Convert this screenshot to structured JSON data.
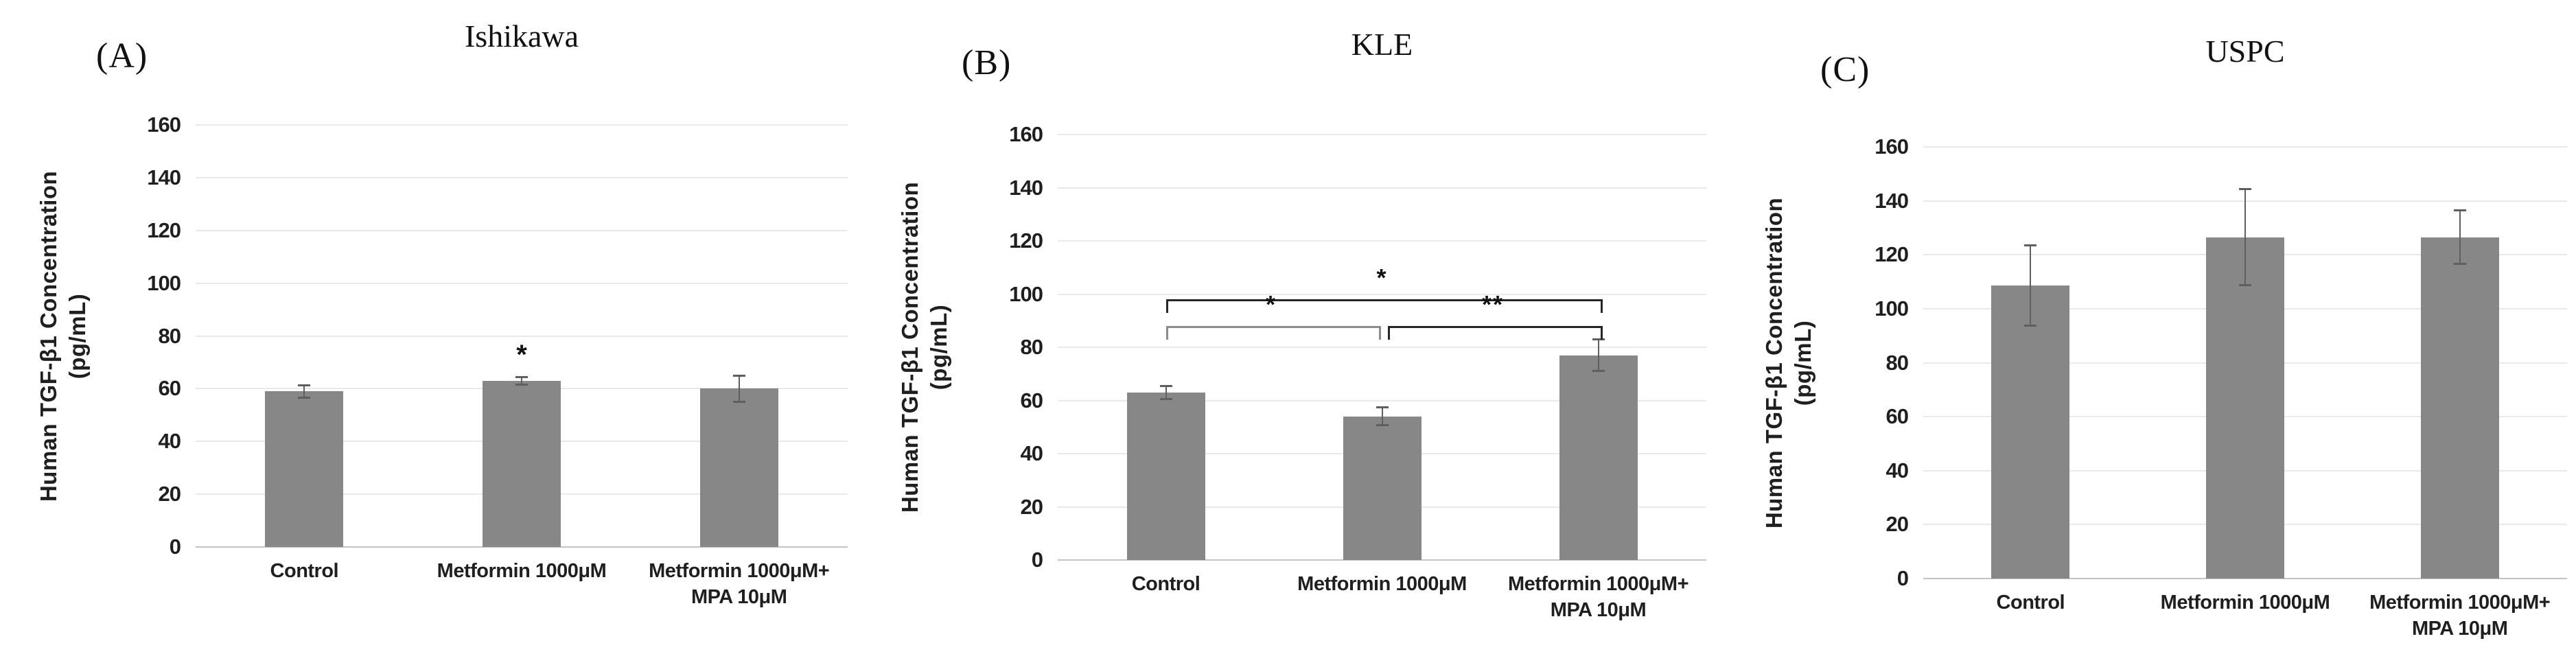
{
  "figure": {
    "kind": "three-panel bar figure",
    "background": "#ffffff",
    "y_axis_title_line1": "Human TGF-β1 Concentration",
    "y_axis_title_line2": "(pg/mL)"
  },
  "colors": {
    "bar": "#878787",
    "gridline": "#e9e9e9",
    "axis_line": "#c3c3c3",
    "error_bar": "#5f5f5f",
    "bracket_dark": "#262626",
    "bracket_gray": "#8c8c8c",
    "text": "#1f1f1f"
  },
  "chart_data": [
    {
      "type": "bar",
      "panel_label": "(A)",
      "title": "Ishikawa",
      "ylabel_line1": "Human TGF-β1 Concentration",
      "ylabel_line2": "(pg/mL)",
      "ylim": [
        0,
        160
      ],
      "ytick_step": 20,
      "y_ticks": [
        "160",
        "140",
        "120",
        "100",
        "80",
        "60",
        "40",
        "20",
        "0"
      ],
      "categories": [
        "Control",
        "Metformin 1000μM",
        "Metformin 1000μM+ MPA 10μM"
      ],
      "categories_lines": [
        [
          "Control"
        ],
        [
          "Metformin 1000μM"
        ],
        [
          "Metformin 1000μM+",
          "MPA 10μM"
        ]
      ],
      "values": [
        59,
        63,
        60
      ],
      "errors": [
        2.5,
        1.5,
        5
      ],
      "grid": true,
      "legend": null,
      "star_annotations": [
        {
          "bar_index": 1,
          "y": 74,
          "text": "*"
        }
      ],
      "sig_brackets": []
    },
    {
      "type": "bar",
      "panel_label": "(B)",
      "title": "KLE",
      "ylabel_line1": "Human TGF-β1 Concentration",
      "ylabel_line2": "(pg/mL)",
      "ylim": [
        0,
        160
      ],
      "ytick_step": 20,
      "y_ticks": [
        "160",
        "140",
        "120",
        "100",
        "80",
        "60",
        "40",
        "20",
        "0"
      ],
      "categories": [
        "Control",
        "Metformin 1000μM",
        "Metformin 1000μM+ MPA 10μM"
      ],
      "categories_lines": [
        [
          "Control"
        ],
        [
          "Metformin 1000μM"
        ],
        [
          "Metformin 1000μM+",
          "MPA 10μM"
        ]
      ],
      "values": [
        63,
        54,
        77
      ],
      "errors": [
        2.5,
        3.5,
        6
      ],
      "grid": true,
      "legend": null,
      "star_annotations": [],
      "sig_brackets": [
        {
          "from": 0,
          "to": 2,
          "y": 98,
          "label": "*",
          "style": "dark"
        },
        {
          "from": 0,
          "to": 1,
          "y": 88,
          "label": "*",
          "style": "gray"
        },
        {
          "from": 1,
          "to": 2,
          "y": 88,
          "label": "**",
          "style": "dark"
        }
      ]
    },
    {
      "type": "bar",
      "panel_label": "(C)",
      "title": "USPC",
      "ylabel_line1": "Human TGF-β1 Concentration",
      "ylabel_line2": "(pg/mL)",
      "ylim": [
        0,
        160
      ],
      "ytick_step": 20,
      "y_ticks": [
        "160",
        "140",
        "120",
        "100",
        "80",
        "60",
        "40",
        "20",
        "0"
      ],
      "categories": [
        "Control",
        "Metformin 1000μM",
        "Metformin 1000μM+ MPA 10μM"
      ],
      "categories_lines": [
        [
          "Control"
        ],
        [
          "Metformin 1000μM"
        ],
        [
          "Metformin 1000μM+",
          "MPA 10μM"
        ]
      ],
      "values": [
        108.5,
        126.5,
        126.5
      ],
      "errors": [
        15,
        18,
        10
      ],
      "grid": true,
      "legend": null,
      "star_annotations": [],
      "sig_brackets": []
    }
  ]
}
